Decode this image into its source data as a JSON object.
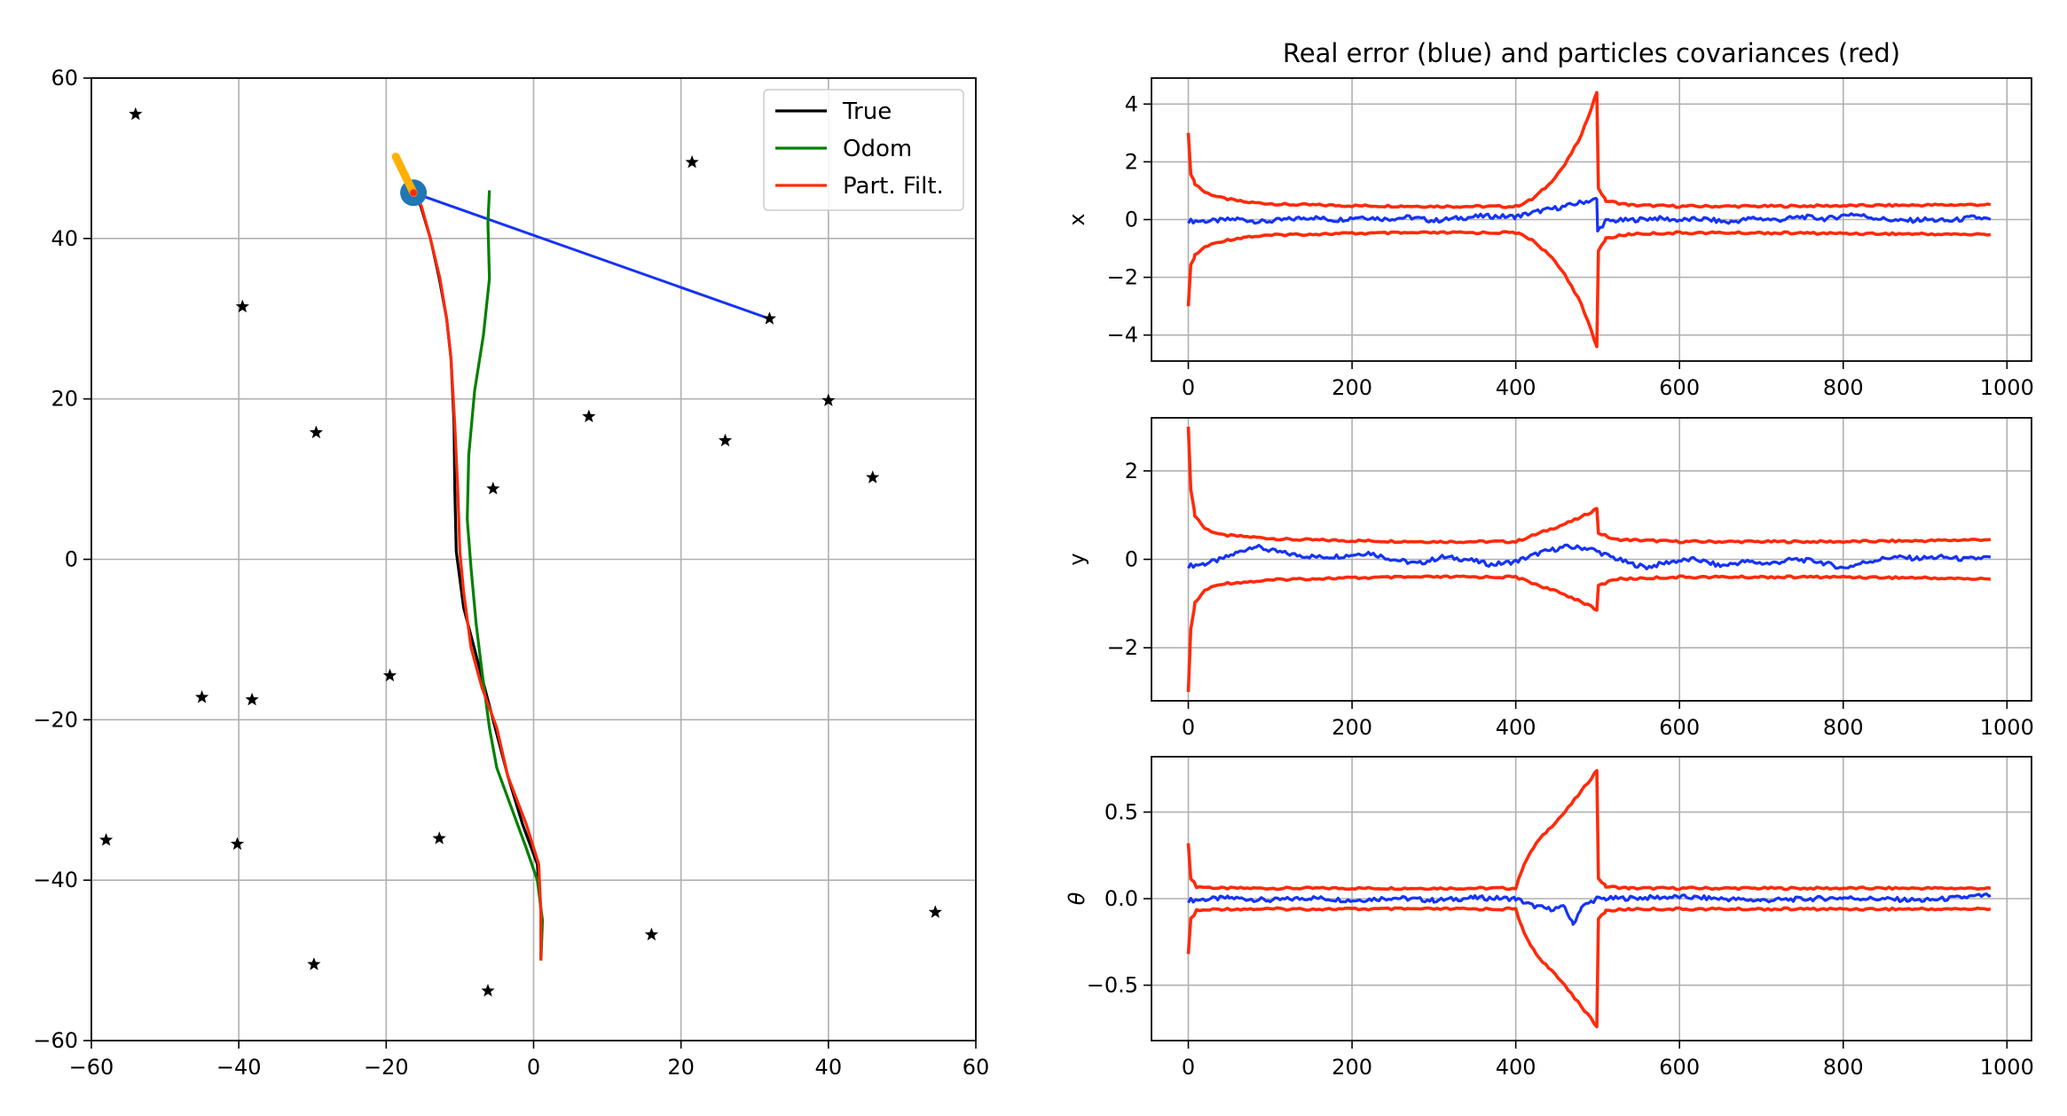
{
  "chart_data": [
    {
      "type": "line",
      "title": "",
      "xlabel": "",
      "ylabel": "",
      "xlim": [
        -60,
        60
      ],
      "ylim": [
        -60,
        60
      ],
      "xticks": [
        "−60",
        "−40",
        "−20",
        "0",
        "20",
        "40",
        "60"
      ],
      "yticks": [
        "60",
        "40",
        "20",
        "0",
        "−20",
        "−40",
        "−60"
      ],
      "grid": true,
      "legend_position": "top-right",
      "series": [
        {
          "name": "True",
          "color": "#000000",
          "points": [
            [
              1,
              -50
            ],
            [
              1,
              -44
            ],
            [
              0.5,
              -38
            ],
            [
              -1.5,
              -33
            ],
            [
              -3.5,
              -27
            ],
            [
              -5.5,
              -20
            ],
            [
              -7.5,
              -13
            ],
            [
              -9.5,
              -6
            ],
            [
              -10.5,
              1
            ],
            [
              -10.7,
              9
            ],
            [
              -10.8,
              17
            ],
            [
              -11.2,
              25
            ],
            [
              -11.8,
              30
            ],
            [
              -12.8,
              35
            ],
            [
              -14,
              40
            ],
            [
              -15.3,
              44
            ],
            [
              -16.3,
              46
            ]
          ]
        },
        {
          "name": "Odom",
          "color": "#008000",
          "points": [
            [
              1,
              -50
            ],
            [
              1.2,
              -45
            ],
            [
              0.5,
              -40
            ],
            [
              -1,
              -36
            ],
            [
              -3,
              -31
            ],
            [
              -5,
              -26
            ],
            [
              -6,
              -21
            ],
            [
              -7,
              -14
            ],
            [
              -7.8,
              -8
            ],
            [
              -8.5,
              -1
            ],
            [
              -9,
              5
            ],
            [
              -8.8,
              13
            ],
            [
              -8,
              21
            ],
            [
              -6.8,
              28
            ],
            [
              -6,
              35
            ],
            [
              -6.2,
              42
            ],
            [
              -6,
              46
            ]
          ]
        },
        {
          "name": "Part. Filt.",
          "color": "#ff2a0a",
          "points": [
            [
              1,
              -50
            ],
            [
              1,
              -44
            ],
            [
              0.7,
              -38
            ],
            [
              -1,
              -33
            ],
            [
              -3.5,
              -27
            ],
            [
              -5,
              -21
            ],
            [
              -7,
              -16
            ],
            [
              -8.5,
              -11
            ],
            [
              -9.5,
              -4
            ],
            [
              -10,
              1
            ],
            [
              -10.3,
              9
            ],
            [
              -10.7,
              17
            ],
            [
              -11.2,
              25
            ],
            [
              -11.8,
              30
            ],
            [
              -12.7,
              35
            ],
            [
              -14,
              40
            ],
            [
              -15.2,
              44
            ],
            [
              -16.2,
              46
            ]
          ]
        }
      ],
      "landmarks": [
        [
          -54,
          55.5
        ],
        [
          -39.5,
          31.5
        ],
        [
          -29.5,
          15.8
        ],
        [
          -5.5,
          8.8
        ],
        [
          7.5,
          17.8
        ],
        [
          21.5,
          49.5
        ],
        [
          26,
          14.8
        ],
        [
          32,
          30
        ],
        [
          40,
          19.8
        ],
        [
          46,
          10.2
        ],
        [
          -19.5,
          -14.5
        ],
        [
          -45,
          -17.2
        ],
        [
          -38.2,
          -17.5
        ],
        [
          -58,
          -35
        ],
        [
          -40.2,
          -35.5
        ],
        [
          -12.8,
          -34.8
        ],
        [
          -29.8,
          -50.5
        ],
        [
          -6.2,
          -53.8
        ],
        [
          16,
          -46.8
        ],
        [
          54.5,
          -44
        ]
      ],
      "robot": {
        "x": -16.3,
        "y": 45.7,
        "color": "#1f77b4"
      },
      "heading": {
        "from": [
          -16.3,
          45.7
        ],
        "to": [
          -18.7,
          50.2
        ],
        "color": "#ffb000"
      },
      "observation": {
        "from": [
          -16.3,
          45.7
        ],
        "to": [
          32,
          30
        ],
        "color": "#1633f5"
      }
    },
    {
      "type": "line",
      "title": "Real error (blue) and particles covariances (red)",
      "ylabel": "x",
      "xlim": [
        -45,
        1030
      ],
      "ylim": [
        -4.9,
        4.9
      ],
      "xticks": [
        "0",
        "200",
        "400",
        "600",
        "800",
        "1000"
      ],
      "yticks": [
        "4",
        "2",
        "0",
        "−2",
        "−4"
      ],
      "grid": true,
      "series_colors": {
        "error": "#1633f5",
        "covariance": "#ff2a0a"
      },
      "covariance_envelope": [
        [
          0,
          3
        ],
        [
          3,
          1.6
        ],
        [
          8,
          1.25
        ],
        [
          20,
          0.95
        ],
        [
          40,
          0.75
        ],
        [
          70,
          0.6
        ],
        [
          120,
          0.52
        ],
        [
          200,
          0.48
        ],
        [
          300,
          0.46
        ],
        [
          400,
          0.45
        ],
        [
          420,
          0.7
        ],
        [
          440,
          1.2
        ],
        [
          460,
          1.9
        ],
        [
          480,
          2.9
        ],
        [
          499,
          4.4
        ],
        [
          501,
          1.1
        ],
        [
          510,
          0.65
        ],
        [
          540,
          0.5
        ],
        [
          600,
          0.46
        ],
        [
          700,
          0.46
        ],
        [
          800,
          0.48
        ],
        [
          900,
          0.5
        ],
        [
          980,
          0.52
        ]
      ],
      "error": [
        [
          0,
          -0.05
        ],
        [
          30,
          -0.05
        ],
        [
          60,
          0.02
        ],
        [
          90,
          -0.08
        ],
        [
          120,
          0
        ],
        [
          150,
          0.08
        ],
        [
          180,
          -0.02
        ],
        [
          210,
          0.1
        ],
        [
          240,
          0.02
        ],
        [
          270,
          0.08
        ],
        [
          300,
          -0.04
        ],
        [
          330,
          0.05
        ],
        [
          360,
          0.12
        ],
        [
          400,
          0.1
        ],
        [
          430,
          0.3
        ],
        [
          460,
          0.45
        ],
        [
          480,
          0.6
        ],
        [
          499,
          0.7
        ],
        [
          500,
          -0.4
        ],
        [
          510,
          -0.05
        ],
        [
          540,
          -0.02
        ],
        [
          570,
          0.05
        ],
        [
          600,
          -0.02
        ],
        [
          630,
          0.02
        ],
        [
          660,
          -0.1
        ],
        [
          690,
          0.05
        ],
        [
          720,
          -0.02
        ],
        [
          750,
          0.1
        ],
        [
          780,
          0.02
        ],
        [
          810,
          0.2
        ],
        [
          840,
          0.05
        ],
        [
          870,
          -0.05
        ],
        [
          900,
          0
        ],
        [
          930,
          -0.05
        ],
        [
          960,
          0.08
        ],
        [
          980,
          0
        ]
      ]
    },
    {
      "type": "line",
      "ylabel": "y",
      "xlim": [
        -45,
        1030
      ],
      "ylim": [
        -3.2,
        3.2
      ],
      "xticks": [
        "0",
        "200",
        "400",
        "600",
        "800",
        "1000"
      ],
      "yticks": [
        "2",
        "0",
        "−2"
      ],
      "grid": true,
      "covariance_envelope": [
        [
          0,
          3
        ],
        [
          3,
          1.6
        ],
        [
          8,
          1.0
        ],
        [
          20,
          0.7
        ],
        [
          40,
          0.55
        ],
        [
          80,
          0.5
        ],
        [
          120,
          0.45
        ],
        [
          200,
          0.42
        ],
        [
          300,
          0.4
        ],
        [
          400,
          0.4
        ],
        [
          430,
          0.6
        ],
        [
          460,
          0.8
        ],
        [
          480,
          0.95
        ],
        [
          499,
          1.15
        ],
        [
          501,
          0.6
        ],
        [
          520,
          0.45
        ],
        [
          600,
          0.4
        ],
        [
          700,
          0.4
        ],
        [
          800,
          0.4
        ],
        [
          900,
          0.42
        ],
        [
          980,
          0.45
        ]
      ],
      "error": [
        [
          0,
          -0.15
        ],
        [
          20,
          -0.1
        ],
        [
          40,
          0
        ],
        [
          60,
          0.15
        ],
        [
          80,
          0.3
        ],
        [
          100,
          0.2
        ],
        [
          130,
          0.1
        ],
        [
          160,
          0.05
        ],
        [
          190,
          0.08
        ],
        [
          220,
          0.15
        ],
        [
          250,
          0
        ],
        [
          280,
          -0.1
        ],
        [
          310,
          0.05
        ],
        [
          340,
          0
        ],
        [
          370,
          -0.12
        ],
        [
          400,
          -0.05
        ],
        [
          430,
          0.15
        ],
        [
          460,
          0.28
        ],
        [
          490,
          0.25
        ],
        [
          510,
          0.1
        ],
        [
          540,
          -0.1
        ],
        [
          560,
          -0.18
        ],
        [
          590,
          -0.05
        ],
        [
          620,
          0
        ],
        [
          650,
          -0.15
        ],
        [
          680,
          -0.05
        ],
        [
          710,
          -0.1
        ],
        [
          740,
          0
        ],
        [
          770,
          -0.05
        ],
        [
          800,
          -0.2
        ],
        [
          830,
          -0.05
        ],
        [
          860,
          0.05
        ],
        [
          890,
          0.02
        ],
        [
          920,
          0.05
        ],
        [
          950,
          0
        ],
        [
          980,
          0.05
        ]
      ]
    },
    {
      "type": "line",
      "ylabel": "θ",
      "xlim": [
        -45,
        1030
      ],
      "ylim": [
        -0.82,
        0.82
      ],
      "xticks": [
        "0",
        "200",
        "400",
        "600",
        "800",
        "1000"
      ],
      "yticks": [
        "0.5",
        "0.0",
        "−0.5"
      ],
      "grid": true,
      "covariance_envelope": [
        [
          0,
          0.32
        ],
        [
          3,
          0.12
        ],
        [
          10,
          0.07
        ],
        [
          40,
          0.06
        ],
        [
          200,
          0.06
        ],
        [
          400,
          0.06
        ],
        [
          410,
          0.2
        ],
        [
          425,
          0.32
        ],
        [
          440,
          0.4
        ],
        [
          460,
          0.5
        ],
        [
          480,
          0.62
        ],
        [
          499,
          0.74
        ],
        [
          501,
          0.12
        ],
        [
          510,
          0.07
        ],
        [
          540,
          0.06
        ],
        [
          700,
          0.06
        ],
        [
          980,
          0.06
        ]
      ],
      "error": [
        [
          0,
          -0.01
        ],
        [
          50,
          0.005
        ],
        [
          100,
          -0.01
        ],
        [
          150,
          0.005
        ],
        [
          200,
          -0.01
        ],
        [
          250,
          0.005
        ],
        [
          300,
          -0.01
        ],
        [
          350,
          0.005
        ],
        [
          400,
          0
        ],
        [
          420,
          -0.04
        ],
        [
          440,
          -0.06
        ],
        [
          460,
          -0.05
        ],
        [
          470,
          -0.15
        ],
        [
          480,
          -0.05
        ],
        [
          499,
          0
        ],
        [
          510,
          0
        ],
        [
          600,
          0.01
        ],
        [
          700,
          -0.01
        ],
        [
          800,
          0.005
        ],
        [
          900,
          -0.01
        ],
        [
          980,
          0.02
        ]
      ]
    }
  ],
  "legend": {
    "items": [
      {
        "label": "True",
        "color": "#000000"
      },
      {
        "label": "Odom",
        "color": "#008000"
      },
      {
        "label": "Part. Filt.",
        "color": "#ff2a0a"
      }
    ]
  }
}
